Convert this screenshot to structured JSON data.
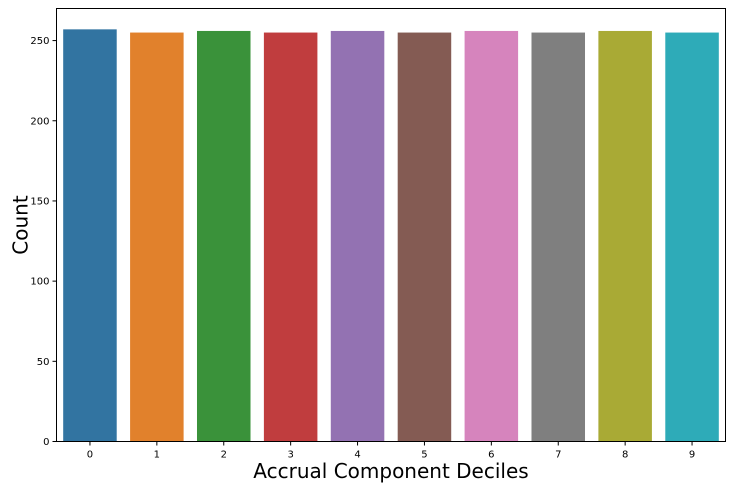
{
  "chart_data": {
    "type": "bar",
    "title": "",
    "xlabel": "Accrual Component Deciles",
    "ylabel": "Count",
    "categories": [
      "0",
      "1",
      "2",
      "3",
      "4",
      "5",
      "6",
      "7",
      "8",
      "9"
    ],
    "values": [
      257,
      255,
      256,
      255,
      256,
      255,
      256,
      255,
      256,
      255
    ],
    "colors": [
      "#3274a1",
      "#e1812c",
      "#3a923a",
      "#c03d3e",
      "#9372b2",
      "#845b53",
      "#d684bd",
      "#7f7f7f",
      "#a9aa35",
      "#2eabb8"
    ],
    "ylim": [
      0,
      270
    ],
    "yticks": [
      0,
      50,
      100,
      150,
      200,
      250
    ],
    "grid": false,
    "legend": "none"
  }
}
